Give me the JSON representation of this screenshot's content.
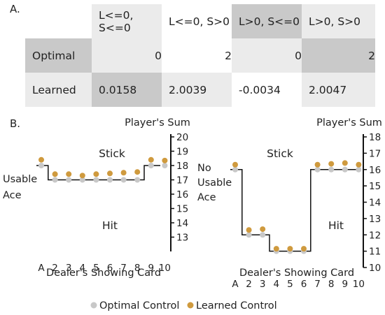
{
  "panel_a_label": "A.",
  "panel_b_label": "B.",
  "table": {
    "columns": [
      "L<=0, S<=0",
      "L<=0, S>0",
      "L>0, S<=0",
      "L>0, S>0"
    ],
    "rows": [
      {
        "name": "Optimal",
        "values": [
          "0",
          "2",
          "0",
          "2"
        ]
      },
      {
        "name": "Learned",
        "values": [
          "0.0158",
          "2.0039",
          "-0.0034",
          "2.0047"
        ]
      }
    ]
  },
  "legend": {
    "items": [
      {
        "name": "Optimal Control",
        "color": "#c8c8c8"
      },
      {
        "name": "Learned Control",
        "color": "#cf9a3e"
      }
    ]
  },
  "chart_data": [
    {
      "type": "scatter",
      "panel": "usable-ace",
      "row_label": [
        "Usable",
        "Ace"
      ],
      "region_labels": {
        "upper": "Stick",
        "lower": "Hit"
      },
      "xlabel": "Dealer's Showing Card",
      "ylabel": "Player's Sum",
      "x_ticks": [
        "A",
        "2",
        "3",
        "4",
        "5",
        "6",
        "7",
        "8",
        "9",
        "10"
      ],
      "ylim": [
        12,
        20
      ],
      "y_ticks": [
        13,
        14,
        15,
        16,
        17,
        18,
        19,
        20
      ],
      "boundary": [
        18,
        17,
        17,
        17,
        17,
        17,
        17,
        17,
        18,
        18
      ],
      "series": [
        {
          "name": "Optimal Control",
          "values": [
            18,
            17,
            17,
            17,
            17,
            17,
            17,
            17,
            18,
            18
          ]
        },
        {
          "name": "Learned Control",
          "values": [
            18.4,
            17.4,
            17.4,
            17.3,
            17.4,
            17.45,
            17.5,
            17.55,
            18.4,
            18.35
          ]
        }
      ]
    },
    {
      "type": "scatter",
      "panel": "no-usable-ace",
      "row_label": [
        "No",
        "Usable",
        "Ace"
      ],
      "region_labels": {
        "upper": "Stick",
        "lower": "Hit"
      },
      "xlabel": "Dealer's Showing Card",
      "ylabel": "Player's Sum",
      "x_ticks": [
        "A",
        "2",
        "3",
        "4",
        "5",
        "6",
        "7",
        "8",
        "9",
        "10"
      ],
      "ylim": [
        10,
        18
      ],
      "y_ticks": [
        10,
        11,
        12,
        13,
        14,
        15,
        16,
        17,
        18
      ],
      "boundary": [
        16,
        12,
        12,
        11,
        11,
        11,
        16,
        16,
        16,
        16
      ],
      "series": [
        {
          "name": "Optimal Control",
          "values": [
            16,
            12,
            12,
            11,
            11,
            11,
            16,
            16,
            16,
            16
          ]
        },
        {
          "name": "Learned Control",
          "values": [
            16.3,
            12.3,
            12.35,
            11.15,
            11.15,
            11.15,
            16.3,
            16.35,
            16.4,
            16.3
          ]
        }
      ]
    }
  ]
}
